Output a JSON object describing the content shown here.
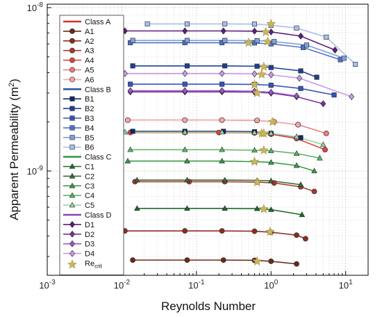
{
  "chart_data": {
    "type": "line",
    "title": "",
    "xlabel": "Reynolds Number",
    "ylabel": "Apparent Permeability (m",
    "ylabel_sup": "2",
    "ylabel_close": ")",
    "xscale": "log",
    "yscale": "log",
    "xlim": [
      0.001,
      20
    ],
    "ylim": [
      2.3e-10,
      1.05e-08
    ],
    "grid": true,
    "legend_position": "upper-left",
    "x_ticks": [
      {
        "value": 0.001,
        "base": "10",
        "exp": "-3"
      },
      {
        "value": 0.01,
        "base": "10",
        "exp": "-2"
      },
      {
        "value": 0.1,
        "base": "10",
        "exp": "-1"
      },
      {
        "value": 1,
        "base": "10",
        "exp": "0"
      },
      {
        "value": 10,
        "base": "10",
        "exp": "1"
      }
    ],
    "y_ticks": [
      {
        "value": 1e-09,
        "base": "10",
        "exp": "-9"
      },
      {
        "value": 1e-08,
        "base": "10",
        "exp": "-8"
      }
    ],
    "groups": [
      {
        "name": "Class A",
        "color": "#d73027",
        "series": [
          "A1",
          "A2",
          "A3",
          "A4",
          "A5",
          "A6"
        ]
      },
      {
        "name": "Class B",
        "color": "#2c5aa0",
        "series": [
          "B1",
          "B2",
          "B3",
          "B4",
          "B5",
          "B6"
        ]
      },
      {
        "name": "Class C",
        "color": "#3a9a4a",
        "series": [
          "C1",
          "C2",
          "C3",
          "C4",
          "C5"
        ]
      },
      {
        "name": "Class D",
        "color": "#8e44ad",
        "series": [
          "D1",
          "D2",
          "D3",
          "D4"
        ]
      }
    ],
    "series": [
      {
        "name": "A1",
        "marker": "circle",
        "color": "#6b2a1a",
        "x": [
          0.014,
          0.075,
          0.23,
          0.6,
          1.0,
          2.2
        ],
        "y": [
          2.85e-10,
          2.85e-10,
          2.85e-10,
          2.84e-10,
          2.8e-10,
          2.7e-10
        ],
        "crit": [
          0.65,
          2.8e-10
        ]
      },
      {
        "name": "A2",
        "marker": "circle",
        "color": "#8a2e22",
        "x": [
          0.011,
          0.07,
          0.22,
          0.6,
          1.0,
          2.2,
          2.9
        ],
        "y": [
          4.3e-10,
          4.3e-10,
          4.3e-10,
          4.28e-10,
          4.22e-10,
          4.05e-10,
          3.85e-10
        ],
        "crit": [
          0.97,
          4.25e-10
        ]
      },
      {
        "name": "A3",
        "marker": "circle",
        "color": "#a83a30",
        "x": [
          0.015,
          0.08,
          0.24,
          0.65,
          1.1,
          2.5,
          3.8
        ],
        "y": [
          8.6e-10,
          8.6e-10,
          8.6e-10,
          8.55e-10,
          8.45e-10,
          8e-10,
          7.5e-10
        ],
        "crit": [
          0.65,
          8.55e-10
        ]
      },
      {
        "name": "A4",
        "marker": "circle",
        "color": "#e0453c",
        "x": [
          0.013,
          0.07,
          0.2,
          0.6,
          1.0,
          2.2,
          5.3
        ],
        "y": [
          1.72e-09,
          1.72e-09,
          1.72e-09,
          1.71e-09,
          1.68e-09,
          1.58e-09,
          1.35e-09
        ],
        "crit": [
          0.75,
          1.7e-09
        ]
      },
      {
        "name": "A5",
        "marker": "circle",
        "color": "#f07a7a",
        "x": [
          0.012,
          0.07,
          0.22,
          0.65,
          1.1,
          2.3,
          5.5
        ],
        "y": [
          2.05e-09,
          2.05e-09,
          2.05e-09,
          2.04e-09,
          2e-09,
          1.92e-09,
          1.7e-09
        ],
        "crit": [
          1.05,
          2e-09
        ]
      },
      {
        "name": "A6",
        "marker": "circle",
        "color": "#f4a8a8",
        "x": [
          0.012,
          0.07,
          0.22,
          0.65,
          1.1,
          2.3
        ],
        "y": [
          2.05e-09,
          2.05e-09,
          2.05e-09,
          2.04e-09,
          2e-09,
          1.92e-09
        ],
        "crit": null
      },
      {
        "name": "B1",
        "marker": "square",
        "color": "#0d2a6b",
        "x": [
          0.014,
          0.07,
          0.23,
          0.6,
          1.0,
          2.5
        ],
        "y": [
          1.75e-09,
          1.75e-09,
          1.75e-09,
          1.74e-09,
          1.7e-09,
          1.6e-09
        ],
        "crit": null
      },
      {
        "name": "B2",
        "marker": "square",
        "color": "#1f3f93",
        "x": [
          0.014,
          0.075,
          0.24,
          0.65,
          1.0,
          2.5,
          4.1
        ],
        "y": [
          4.4e-09,
          4.4e-09,
          4.4e-09,
          4.38e-09,
          4.3e-09,
          4.1e-09,
          3.75e-09
        ],
        "crit": [
          0.8,
          4.35e-09
        ]
      },
      {
        "name": "B3",
        "marker": "square",
        "color": "#3355bb",
        "x": [
          0.013,
          0.07,
          0.22,
          0.6,
          1.0,
          2.5,
          7.0
        ],
        "y": [
          3.4e-09,
          3.4e-09,
          3.4e-09,
          3.39e-09,
          3.35e-09,
          3.2e-09,
          2.92e-09
        ],
        "crit": [
          0.6,
          3.38e-09
        ]
      },
      {
        "name": "B4",
        "marker": "square",
        "color": "#4f74cc",
        "x": [
          0.013,
          0.07,
          0.22,
          0.6,
          1.0,
          2.7,
          8.5
        ],
        "y": [
          6.1e-09,
          6.1e-09,
          6.1e-09,
          6.08e-09,
          6e-09,
          5.7e-09,
          4.8e-09
        ],
        "crit": [
          0.5,
          6.1e-09
        ]
      },
      {
        "name": "B5",
        "marker": "square",
        "color": "#7fa0dd",
        "x": [
          0.014,
          0.075,
          0.24,
          0.65,
          1.1,
          3.0,
          9.5
        ],
        "y": [
          6.3e-09,
          6.3e-09,
          6.3e-09,
          6.28e-09,
          6.2e-09,
          5.9e-09,
          4.9e-09
        ],
        "crit": [
          0.9,
          6.2e-09
        ]
      },
      {
        "name": "B6",
        "marker": "square",
        "color": "#a8c1ea",
        "x": [
          0.022,
          0.075,
          0.24,
          0.6,
          1.0,
          2.2,
          5.5,
          13.5
        ],
        "y": [
          7.95e-09,
          7.95e-09,
          7.95e-09,
          7.93e-09,
          7.8e-09,
          7.5e-09,
          6.6e-09,
          4.5e-09
        ],
        "crit": [
          1.0,
          7.95e-09
        ]
      },
      {
        "name": "C1",
        "marker": "triangle",
        "color": "#1f6b2a",
        "x": [
          0.016,
          0.075,
          0.24,
          0.65,
          1.0,
          2.6
        ],
        "y": [
          5.9e-10,
          5.9e-10,
          5.9e-10,
          5.88e-10,
          5.8e-10,
          5.4e-10
        ],
        "crit": [
          0.8,
          5.85e-10
        ]
      },
      {
        "name": "C2",
        "marker": "triangle",
        "color": "#3b6a34",
        "x": [
          0.016,
          0.075,
          0.24,
          0.65,
          1.0,
          2.5
        ],
        "y": [
          8.8e-10,
          8.8e-10,
          8.8e-10,
          8.77e-10,
          8.7e-10,
          8.25e-10
        ],
        "crit": null
      },
      {
        "name": "C3",
        "marker": "triangle",
        "color": "#3a9a4a",
        "x": [
          0.012,
          0.075,
          0.22,
          0.6,
          1.0,
          2.2,
          3.8
        ],
        "y": [
          1.15e-09,
          1.15e-09,
          1.15e-09,
          1.14e-09,
          1.13e-09,
          1.08e-09,
          1e-09
        ],
        "crit": [
          0.6,
          1.14e-09
        ]
      },
      {
        "name": "C4",
        "marker": "triangle",
        "color": "#5bb36a",
        "x": [
          0.013,
          0.07,
          0.22,
          0.6,
          1.0,
          2.2,
          4.5
        ],
        "y": [
          1.35e-09,
          1.35e-09,
          1.35e-09,
          1.34e-09,
          1.33e-09,
          1.28e-09,
          1.2e-09
        ],
        "crit": [
          0.8,
          1.34e-09
        ]
      },
      {
        "name": "C5",
        "marker": "triangle",
        "color": "#9ed3a4",
        "x": [
          0.011,
          0.07,
          0.22,
          0.6,
          1.0,
          2.2,
          5.0
        ],
        "y": [
          1.73e-09,
          1.73e-09,
          1.73e-09,
          1.72e-09,
          1.7e-09,
          1.62e-09,
          1.45e-09
        ],
        "crit": [
          0.8,
          1.7e-09
        ]
      },
      {
        "name": "D1",
        "marker": "diamond",
        "color": "#5a1f7a",
        "x": [
          0.011,
          0.07,
          0.23,
          0.6,
          1.0,
          2.5,
          7.2
        ],
        "y": [
          7.2e-09,
          7.2e-09,
          7.2e-09,
          7.18e-09,
          7.1e-09,
          6.7e-09,
          5.5e-09
        ],
        "crit": [
          0.85,
          7.1e-09
        ]
      },
      {
        "name": "D2",
        "marker": "diamond",
        "color": "#7a30a0",
        "x": [
          0.013,
          0.07,
          0.22,
          0.6,
          1.0,
          2.2,
          5.0
        ],
        "y": [
          3.05e-09,
          3.05e-09,
          3.05e-09,
          3.04e-09,
          3e-09,
          2.85e-09,
          2.58e-09
        ],
        "crit": [
          0.65,
          3e-09
        ]
      },
      {
        "name": "D3",
        "marker": "diamond",
        "color": "#9b58c5",
        "x": [
          0.013,
          0.07,
          0.22,
          0.6,
          1.0,
          2.2
        ],
        "y": [
          3.1e-09,
          3.1e-09,
          3.1e-09,
          3.08e-09,
          3.03e-09,
          2.88e-09
        ],
        "crit": null
      },
      {
        "name": "D4",
        "marker": "diamond",
        "color": "#c99ae8",
        "x": [
          0.011,
          0.07,
          0.22,
          0.6,
          1.0,
          2.4,
          12.0
        ],
        "y": [
          3.95e-09,
          3.95e-09,
          3.95e-09,
          3.93e-09,
          3.88e-09,
          3.7e-09,
          2.85e-09
        ],
        "crit": [
          0.75,
          3.9e-09
        ]
      }
    ],
    "crit_label_base": "Re",
    "crit_label_sub": "crit",
    "crit_color": "#c8b560"
  }
}
